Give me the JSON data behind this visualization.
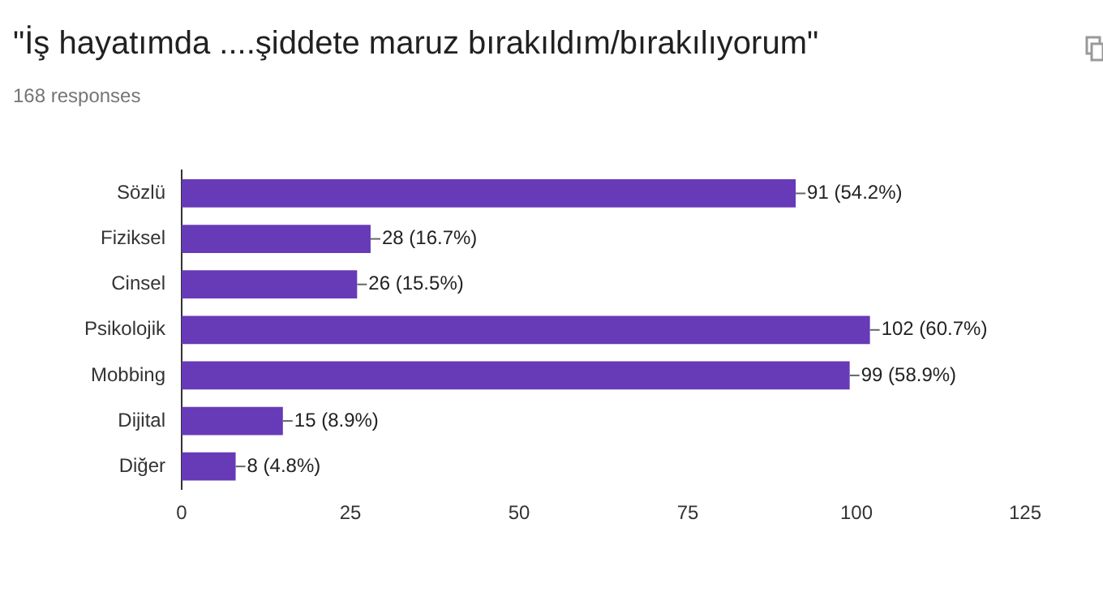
{
  "chart_data": {
    "type": "bar",
    "orientation": "horizontal",
    "title": "\"İş hayatımda ....şiddete maruz bırakıldım/bırakılıyorum\"",
    "subtitle": "168 responses",
    "categories": [
      "Sözlü",
      "Fiziksel",
      "Cinsel",
      "Psikolojik",
      "Mobbing",
      "Dijital",
      "Diğer"
    ],
    "values": [
      91,
      28,
      26,
      102,
      99,
      15,
      8
    ],
    "value_labels": [
      "91 (54.2%)",
      "28 (16.7%)",
      "26 (15.5%)",
      "102 (60.7%)",
      "99 (58.9%)",
      "15 (8.9%)",
      "8 (4.8%)"
    ],
    "color": "#673ab7",
    "xlim": [
      0,
      125
    ],
    "xticks": [
      0,
      25,
      50,
      75,
      100,
      125
    ],
    "grid": false,
    "legend": false
  }
}
